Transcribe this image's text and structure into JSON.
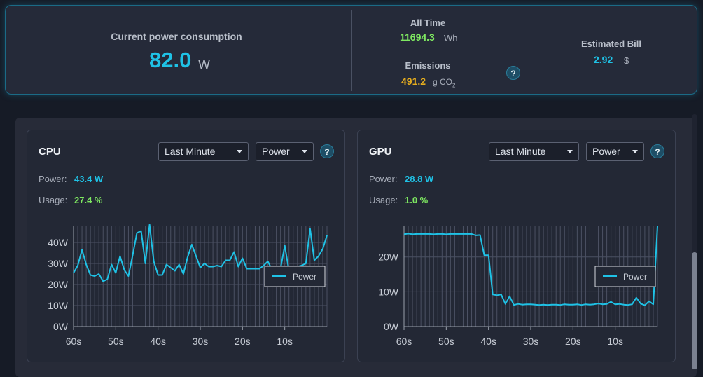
{
  "summary": {
    "current_label": "Current power consumption",
    "current_value": "82.0",
    "current_unit": "W",
    "alltime_label": "All Time",
    "alltime_value": "11694.3",
    "alltime_unit": "Wh",
    "emissions_label": "Emissions",
    "emissions_value": "491.2",
    "emissions_unit": "g CO",
    "emissions_unit_sub": "2",
    "help_label": "?",
    "bill_label": "Estimated Bill",
    "bill_value": "2.92",
    "bill_unit": "$"
  },
  "cards": [
    {
      "title": "CPU",
      "range_select": "Last Minute",
      "metric_select": "Power",
      "help_label": "?",
      "power_label": "Power:",
      "power_value": "43.4 W",
      "usage_label": "Usage:",
      "usage_value": "27.4 %"
    },
    {
      "title": "GPU",
      "range_select": "Last Minute",
      "metric_select": "Power",
      "help_label": "?",
      "power_label": "Power:",
      "power_value": "28.8 W",
      "usage_label": "Usage:",
      "usage_value": "1.0 %"
    }
  ],
  "colors": {
    "accent": "#1fc2e6",
    "green": "#7ee861",
    "amber": "#e6ad1e"
  },
  "chart_data": [
    {
      "type": "line",
      "ylim": [
        0,
        48
      ],
      "yticks": [
        0,
        10,
        20,
        30,
        40
      ],
      "ytick_labels": [
        "0W",
        "10W",
        "20W",
        "30W",
        "40W"
      ],
      "xlim": [
        60,
        0
      ],
      "xticks": [
        60,
        50,
        40,
        30,
        20,
        10
      ],
      "xtick_labels": [
        "60s",
        "50s",
        "40s",
        "30s",
        "20s",
        "10s"
      ],
      "grid": true,
      "legend_position": "right",
      "series": [
        {
          "name": "Power",
          "x": [
            60,
            59,
            58,
            57,
            56,
            55,
            54,
            53,
            52,
            51,
            50,
            49,
            48,
            47,
            46,
            45,
            44,
            43,
            42,
            41,
            40,
            39,
            38,
            37,
            36,
            35,
            34,
            33,
            32,
            31,
            30,
            29,
            28,
            27,
            26,
            25,
            24,
            23,
            22,
            21,
            20,
            19,
            18,
            17,
            16,
            15,
            14,
            13,
            12,
            11,
            10,
            9,
            8,
            7,
            6,
            5,
            4,
            3,
            2,
            1,
            0
          ],
          "values": [
            25.5,
            29,
            36.5,
            29.5,
            24.5,
            24,
            25,
            21.5,
            22.5,
            29.5,
            25.5,
            33.5,
            27,
            24,
            34,
            44.5,
            45.5,
            30,
            48.5,
            31,
            24.5,
            24.5,
            29.5,
            28,
            26.5,
            29.5,
            25,
            33,
            39,
            33.5,
            28,
            30,
            28.5,
            28.5,
            29,
            28.5,
            31.5,
            31.5,
            35.5,
            28.5,
            32.5,
            27.5,
            27.5,
            27.5,
            27.5,
            29,
            31,
            27,
            27.5,
            27.5,
            38.5,
            26.5,
            28.5,
            28.5,
            29,
            30,
            46.5,
            31.5,
            33.5,
            37,
            43.4
          ]
        }
      ]
    },
    {
      "type": "line",
      "ylim": [
        0,
        29
      ],
      "yticks": [
        0,
        10,
        20
      ],
      "ytick_labels": [
        "0W",
        "10W",
        "20W"
      ],
      "xlim": [
        60,
        0
      ],
      "xticks": [
        60,
        50,
        40,
        30,
        20,
        10
      ],
      "xtick_labels": [
        "60s",
        "50s",
        "40s",
        "30s",
        "20s",
        "10s"
      ],
      "grid": true,
      "legend_position": "right",
      "series": [
        {
          "name": "Power",
          "x": [
            60,
            59,
            58,
            57,
            56,
            55,
            54,
            53,
            52,
            51,
            50,
            49,
            48,
            47,
            46,
            45,
            44,
            43,
            42,
            41,
            40,
            39,
            38,
            37,
            36,
            35,
            34,
            33,
            32,
            31,
            30,
            29,
            28,
            27,
            26,
            25,
            24,
            23,
            22,
            21,
            20,
            19,
            18,
            17,
            16,
            15,
            14,
            13,
            12,
            11,
            10,
            9,
            8,
            7,
            6,
            5,
            4,
            3,
            2,
            1,
            0
          ],
          "values": [
            26.5,
            26.7,
            26.5,
            26.6,
            26.6,
            26.6,
            26.6,
            26.5,
            26.6,
            26.6,
            26.5,
            26.6,
            26.6,
            26.6,
            26.6,
            26.6,
            26.6,
            26.2,
            26.3,
            20.5,
            20.5,
            9.2,
            9,
            9.2,
            6.5,
            8.7,
            6.2,
            6.5,
            6.3,
            6.4,
            6.4,
            6.3,
            6.2,
            6.3,
            6.2,
            6.3,
            6.3,
            6.2,
            6.4,
            6.3,
            6.3,
            6.4,
            6.2,
            6.4,
            6.3,
            6.4,
            6.6,
            6.4,
            6.5,
            7.1,
            6.4,
            6.5,
            6.3,
            6.2,
            6.4,
            8.3,
            6.6,
            6.1,
            7.3,
            6.4,
            28.8
          ]
        }
      ]
    }
  ]
}
